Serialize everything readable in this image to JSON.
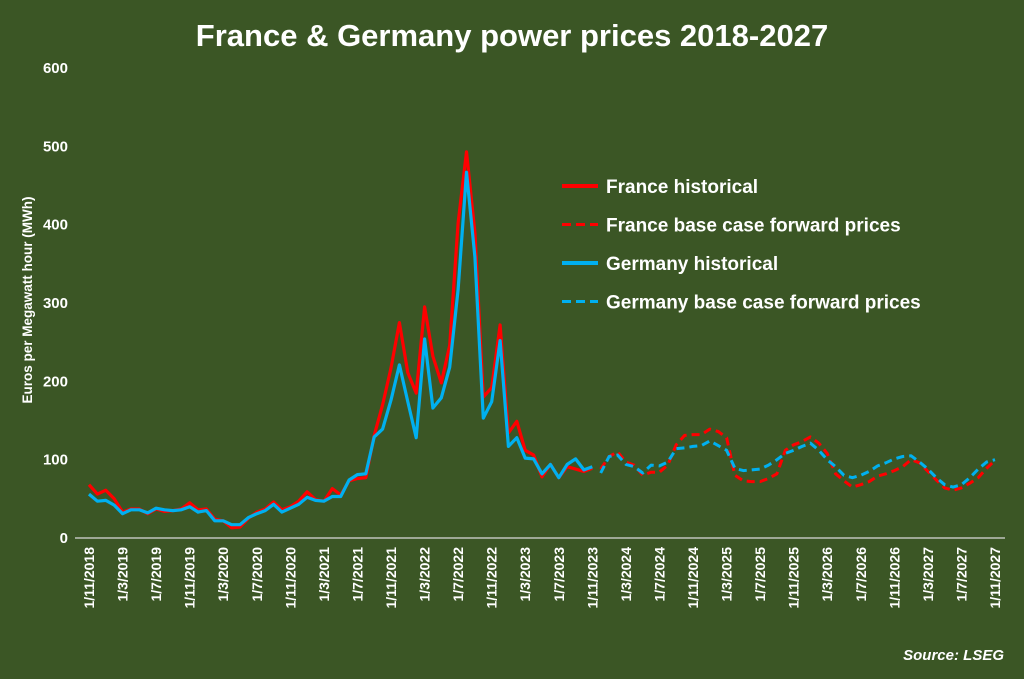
{
  "colors": {
    "background": "#3b5625",
    "france": "#ff0000",
    "germany": "#00b0f0",
    "text": "#ffffff"
  },
  "chart_data": {
    "type": "line",
    "title": "France & Germany power prices 2018-2027",
    "ylabel": "Euros per Megawatt hour (MWh)",
    "xlabel": "",
    "ylim": [
      0,
      600
    ],
    "y_ticks": [
      "0",
      "100",
      "200",
      "300",
      "400",
      "500",
      "600"
    ],
    "grid": false,
    "legend_placement": "right",
    "source": "Source: LSEG",
    "x_tick_labels": [
      "1/11/2018",
      "1/3/2019",
      "1/7/2019",
      "1/11/2019",
      "1/3/2020",
      "1/7/2020",
      "1/11/2020",
      "1/3/2021",
      "1/7/2021",
      "1/11/2021",
      "1/3/2022",
      "1/7/2022",
      "1/11/2022",
      "1/3/2023",
      "1/7/2023",
      "1/11/2023",
      "1/3/2024",
      "1/7/2024",
      "1/11/2024",
      "1/3/2025",
      "1/7/2025",
      "1/11/2025",
      "1/3/2026",
      "1/7/2026",
      "1/11/2026",
      "1/3/2027",
      "1/7/2027",
      "1/11/2027"
    ],
    "x": [
      "1/11/2018",
      "1/12/2018",
      "1/1/2019",
      "1/2/2019",
      "1/3/2019",
      "1/4/2019",
      "1/5/2019",
      "1/6/2019",
      "1/7/2019",
      "1/8/2019",
      "1/9/2019",
      "1/10/2019",
      "1/11/2019",
      "1/12/2019",
      "1/1/2020",
      "1/2/2020",
      "1/3/2020",
      "1/4/2020",
      "1/5/2020",
      "1/6/2020",
      "1/7/2020",
      "1/8/2020",
      "1/9/2020",
      "1/10/2020",
      "1/11/2020",
      "1/12/2020",
      "1/1/2021",
      "1/2/2021",
      "1/3/2021",
      "1/4/2021",
      "1/5/2021",
      "1/6/2021",
      "1/7/2021",
      "1/8/2021",
      "1/9/2021",
      "1/10/2021",
      "1/11/2021",
      "1/12/2021",
      "1/1/2022",
      "1/2/2022",
      "1/3/2022",
      "1/4/2022",
      "1/5/2022",
      "1/6/2022",
      "1/7/2022",
      "1/8/2022",
      "1/9/2022",
      "1/10/2022",
      "1/11/2022",
      "1/12/2022",
      "1/1/2023",
      "1/2/2023",
      "1/3/2023",
      "1/4/2023",
      "1/5/2023",
      "1/6/2023",
      "1/7/2023",
      "1/8/2023",
      "1/9/2023",
      "1/10/2023",
      "1/11/2023",
      "1/12/2023",
      "1/1/2024",
      "1/2/2024",
      "1/3/2024",
      "1/4/2024",
      "1/5/2024",
      "1/6/2024",
      "1/7/2024",
      "1/8/2024",
      "1/9/2024",
      "1/10/2024",
      "1/11/2024",
      "1/12/2024",
      "1/1/2025",
      "1/2/2025",
      "1/3/2025",
      "1/4/2025",
      "1/5/2025",
      "1/6/2025",
      "1/7/2025",
      "1/8/2025",
      "1/9/2025",
      "1/10/2025",
      "1/11/2025",
      "1/12/2025",
      "1/1/2026",
      "1/2/2026",
      "1/3/2026",
      "1/4/2026",
      "1/5/2026",
      "1/6/2026",
      "1/7/2026",
      "1/8/2026",
      "1/9/2026",
      "1/10/2026",
      "1/11/2026",
      "1/12/2026",
      "1/1/2027",
      "1/2/2027",
      "1/3/2027",
      "1/4/2027",
      "1/5/2027",
      "1/6/2027",
      "1/7/2027",
      "1/8/2027",
      "1/9/2027",
      "1/10/2027",
      "1/11/2027"
    ],
    "series": [
      {
        "name": "France historical",
        "color": "#ff0000",
        "style": "solid",
        "values": [
          68,
          56,
          61,
          50,
          33,
          37,
          37,
          31,
          37,
          34,
          35,
          37,
          45,
          36,
          37,
          24,
          22,
          13,
          14,
          25,
          33,
          37,
          46,
          36,
          40,
          47,
          59,
          49,
          47,
          63,
          55,
          73,
          76,
          77,
          131,
          170,
          217,
          275,
          211,
          185,
          295,
          232,
          198,
          246,
          402,
          493,
          390,
          180,
          192,
          272,
          134,
          149,
          112,
          106,
          78,
          94,
          77,
          91,
          88,
          85,
          89,
          null,
          null,
          null,
          null,
          null,
          null,
          null,
          null,
          null,
          null,
          null,
          null,
          null,
          null,
          null,
          null,
          null,
          null,
          null,
          null,
          null,
          null,
          null,
          null,
          null,
          null,
          null,
          null,
          null,
          null,
          null,
          null,
          null,
          null,
          null,
          null,
          null,
          null,
          null,
          null,
          null,
          null,
          null,
          null,
          null,
          null,
          null,
          null
        ]
      },
      {
        "name": "France base case forward prices",
        "color": "#ff0000",
        "style": "dashed",
        "values": [
          null,
          null,
          null,
          null,
          null,
          null,
          null,
          null,
          null,
          null,
          null,
          null,
          null,
          null,
          null,
          null,
          null,
          null,
          null,
          null,
          null,
          null,
          null,
          null,
          null,
          null,
          null,
          null,
          null,
          null,
          null,
          null,
          null,
          null,
          null,
          null,
          null,
          null,
          null,
          null,
          null,
          null,
          null,
          null,
          null,
          null,
          null,
          null,
          null,
          null,
          null,
          null,
          null,
          null,
          null,
          null,
          null,
          null,
          null,
          null,
          null,
          88,
          104,
          110,
          97,
          93,
          80,
          84,
          84,
          93,
          119,
          131,
          132,
          132,
          139,
          136,
          128,
          80,
          73,
          72,
          72,
          76,
          82,
          112,
          119,
          123,
          129,
          121,
          108,
          82,
          73,
          65,
          68,
          72,
          79,
          82,
          86,
          91,
          100,
          96,
          85,
          74,
          64,
          61,
          64,
          70,
          77,
          89,
          99
        ]
      },
      {
        "name": "Germany historical",
        "color": "#00b0f0",
        "style": "solid",
        "values": [
          56,
          47,
          48,
          42,
          31,
          36,
          36,
          32,
          38,
          36,
          35,
          36,
          40,
          33,
          35,
          22,
          22,
          17,
          17,
          26,
          31,
          35,
          43,
          33,
          38,
          43,
          52,
          48,
          47,
          53,
          53,
          74,
          81,
          82,
          129,
          139,
          176,
          221,
          174,
          128,
          254,
          166,
          179,
          218,
          317,
          467,
          359,
          153,
          174,
          252,
          117,
          128,
          102,
          101,
          82,
          94,
          77,
          94,
          101,
          87,
          91,
          null,
          null,
          null,
          null,
          null,
          null,
          null,
          null,
          null,
          null,
          null,
          null,
          null,
          null,
          null,
          null,
          null,
          null,
          null,
          null,
          null,
          null,
          null,
          null,
          null,
          null,
          null,
          null,
          null,
          null,
          null,
          null,
          null,
          null,
          null,
          null,
          null,
          null,
          null,
          null,
          null,
          null,
          null,
          null,
          null,
          null,
          null,
          null
        ]
      },
      {
        "name": "Germany base case forward prices",
        "color": "#00b0f0",
        "style": "dashed",
        "values": [
          null,
          null,
          null,
          null,
          null,
          null,
          null,
          null,
          null,
          null,
          null,
          null,
          null,
          null,
          null,
          null,
          null,
          null,
          null,
          null,
          null,
          null,
          null,
          null,
          null,
          null,
          null,
          null,
          null,
          null,
          null,
          null,
          null,
          null,
          null,
          null,
          null,
          null,
          null,
          null,
          null,
          null,
          null,
          null,
          null,
          null,
          null,
          null,
          null,
          null,
          null,
          null,
          null,
          null,
          null,
          null,
          null,
          null,
          null,
          null,
          null,
          83,
          104,
          106,
          94,
          91,
          83,
          93,
          92,
          97,
          114,
          115,
          117,
          118,
          124,
          118,
          112,
          89,
          86,
          87,
          88,
          93,
          100,
          108,
          112,
          117,
          121,
          112,
          100,
          91,
          80,
          77,
          80,
          85,
          92,
          96,
          101,
          104,
          105,
          97,
          88,
          77,
          68,
          65,
          68,
          77,
          88,
          97,
          100
        ]
      }
    ]
  }
}
